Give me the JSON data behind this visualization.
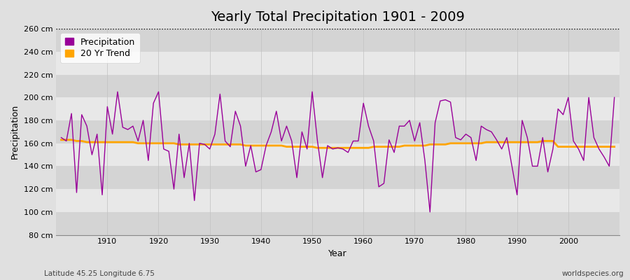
{
  "title": "Yearly Total Precipitation 1901 - 2009",
  "xlabel": "Year",
  "ylabel": "Precipitation",
  "subtitle": "Latitude 45.25 Longitude 6.75",
  "watermark": "worldspecies.org",
  "years": [
    1901,
    1902,
    1903,
    1904,
    1905,
    1906,
    1907,
    1908,
    1909,
    1910,
    1911,
    1912,
    1913,
    1914,
    1915,
    1916,
    1917,
    1918,
    1919,
    1920,
    1921,
    1922,
    1923,
    1924,
    1925,
    1926,
    1927,
    1928,
    1929,
    1930,
    1931,
    1932,
    1933,
    1934,
    1935,
    1936,
    1937,
    1938,
    1939,
    1940,
    1941,
    1942,
    1943,
    1944,
    1945,
    1946,
    1947,
    1948,
    1949,
    1950,
    1951,
    1952,
    1953,
    1954,
    1955,
    1956,
    1957,
    1958,
    1959,
    1960,
    1961,
    1962,
    1963,
    1964,
    1965,
    1966,
    1967,
    1968,
    1969,
    1970,
    1971,
    1972,
    1973,
    1974,
    1975,
    1976,
    1977,
    1978,
    1979,
    1980,
    1981,
    1982,
    1983,
    1984,
    1985,
    1986,
    1987,
    1988,
    1989,
    1990,
    1991,
    1992,
    1993,
    1994,
    1995,
    1996,
    1997,
    1998,
    1999,
    2000,
    2001,
    2002,
    2003,
    2004,
    2005,
    2006,
    2007,
    2008,
    2009
  ],
  "precipitation": [
    165,
    162,
    186,
    117,
    185,
    175,
    150,
    168,
    115,
    192,
    168,
    205,
    174,
    172,
    175,
    162,
    180,
    145,
    195,
    205,
    155,
    153,
    120,
    168,
    130,
    160,
    110,
    160,
    159,
    155,
    168,
    203,
    162,
    157,
    188,
    175,
    140,
    158,
    135,
    137,
    158,
    170,
    188,
    162,
    175,
    162,
    130,
    170,
    155,
    205,
    163,
    130,
    158,
    155,
    156,
    155,
    152,
    162,
    162,
    195,
    175,
    162,
    122,
    125,
    163,
    152,
    175,
    175,
    180,
    162,
    178,
    145,
    100,
    178,
    197,
    198,
    196,
    165,
    163,
    168,
    165,
    145,
    175,
    172,
    170,
    163,
    155,
    165,
    140,
    115,
    180,
    165,
    140,
    140,
    165,
    135,
    155,
    190,
    185,
    200,
    162,
    155,
    145,
    200,
    165,
    155,
    148,
    140,
    200
  ],
  "trend": [
    163,
    163,
    163,
    162,
    162,
    161,
    161,
    161,
    161,
    161,
    161,
    161,
    161,
    161,
    161,
    160,
    160,
    160,
    160,
    160,
    160,
    160,
    160,
    159,
    159,
    159,
    159,
    159,
    159,
    159,
    159,
    159,
    159,
    159,
    159,
    159,
    158,
    158,
    158,
    158,
    158,
    158,
    158,
    158,
    157,
    157,
    157,
    157,
    157,
    157,
    156,
    156,
    156,
    156,
    156,
    156,
    156,
    156,
    156,
    156,
    156,
    157,
    157,
    157,
    157,
    157,
    157,
    158,
    158,
    158,
    158,
    158,
    159,
    159,
    159,
    159,
    160,
    160,
    160,
    160,
    160,
    160,
    160,
    161,
    161,
    161,
    161,
    161,
    161,
    161,
    161,
    161,
    161,
    161,
    162,
    162,
    162,
    157,
    157,
    157,
    157,
    157,
    157,
    157,
    157,
    157,
    157,
    157,
    157
  ],
  "precip_color": "#990099",
  "trend_color": "#FFA500",
  "background_color": "#e0e0e0",
  "band_color_light": "#e8e8e8",
  "band_color_dark": "#d4d4d4",
  "ylim": [
    80,
    260
  ],
  "yticks": [
    80,
    100,
    120,
    140,
    160,
    180,
    200,
    220,
    240,
    260
  ],
  "title_fontsize": 14,
  "label_fontsize": 9,
  "tick_fontsize": 8,
  "legend_items": [
    "Precipitation",
    "20 Yr Trend"
  ],
  "top_line_y": 260,
  "grid_color": "#c0c0c0",
  "xticks": [
    1910,
    1920,
    1930,
    1940,
    1950,
    1960,
    1970,
    1980,
    1990,
    2000
  ],
  "xlim_left": 1900,
  "xlim_right": 2010
}
